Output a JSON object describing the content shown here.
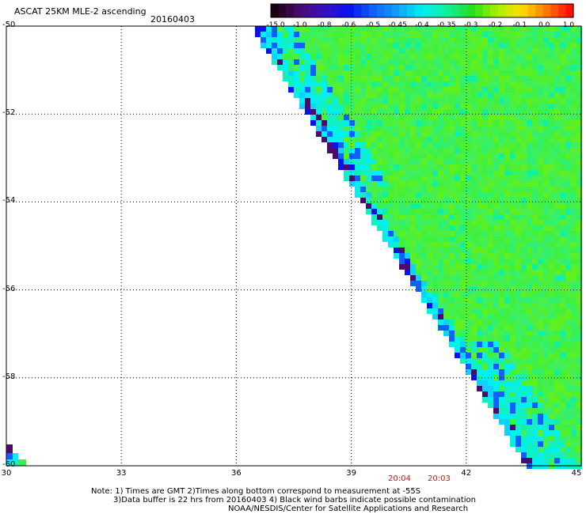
{
  "header": {
    "title": "ASCAT 25KM MLE-2 ascending",
    "date": "20160403"
  },
  "colorbar": {
    "labels": [
      "-15.0",
      "-1.0",
      "-0.8",
      "-0.6",
      "-0.5",
      "-0.45",
      "-0.4",
      "-0.35",
      "-0.3",
      "-0.2",
      "-0.1",
      "0.0",
      "1.0"
    ],
    "colors": [
      "#1a0010",
      "#4b0a6e",
      "#3a10c0",
      "#0a10f0",
      "#1060ff",
      "#10a0ff",
      "#00f0f0",
      "#10f0a0",
      "#20e020",
      "#a0f000",
      "#ffe000",
      "#ff8000",
      "#ff1000"
    ]
  },
  "axes": {
    "lat_labels": [
      "-50",
      "-52",
      "-54",
      "-56",
      "-58",
      "-60"
    ],
    "lon_labels": [
      "30",
      "33",
      "36",
      "39",
      "42",
      "45"
    ],
    "lat_range": [
      -60,
      -50
    ],
    "lon_range": [
      30,
      45
    ],
    "grid": true
  },
  "times": [
    "20:04",
    "20:03"
  ],
  "notes": [
    "Note: 1) Times are GMT 2)Times along bottom correspond to measurement at -55S",
    "3)Data buffer is 22 hrs from 20160403 4) Black wind barbs indicate possible contamination",
    "NOAA/NESDIS/Center for Satellite Applications and Research"
  ]
}
